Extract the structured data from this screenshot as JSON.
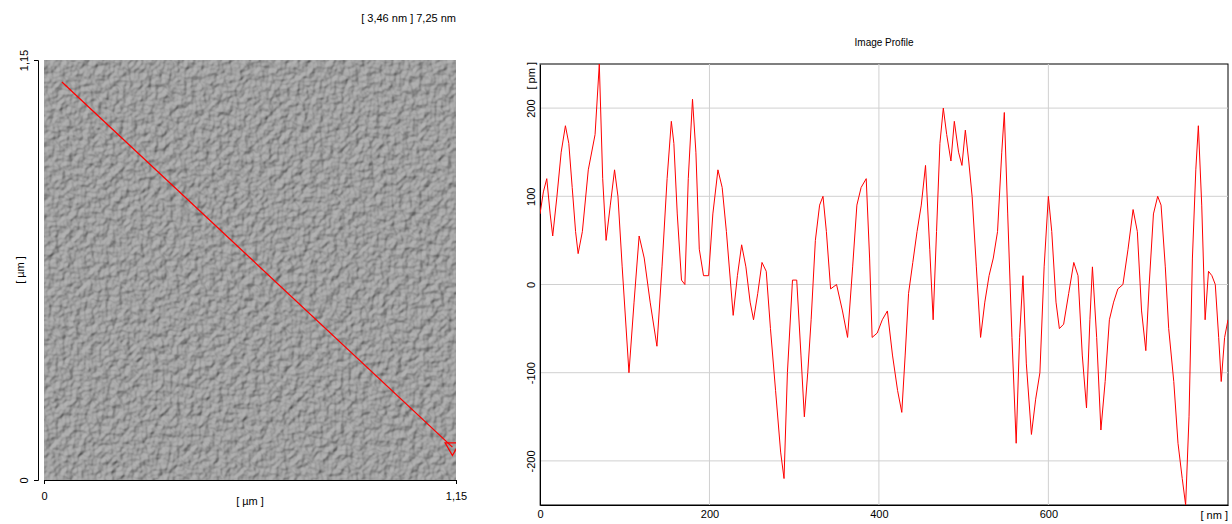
{
  "chart_data": [
    {
      "type": "image",
      "title": "[ 3,46 nm ] 7,25 nm",
      "x_label": "[ µm ]",
      "y_label": "[ µm ]",
      "xlim": [
        0,
        1.15
      ],
      "ylim": [
        0,
        1.15
      ],
      "xticks": [
        0,
        {
          "value": 1.15,
          "label": "1,15"
        }
      ],
      "yticks": [
        0,
        {
          "value": 1.15,
          "label": "1,15"
        }
      ],
      "series": [
        {
          "type": "line",
          "color": "#ff0000",
          "marker": "triangle",
          "x": [
            0.05,
            1.14
          ],
          "values": [
            1.09,
            0.09
          ]
        }
      ]
    },
    {
      "type": "line",
      "title": "Image Profile",
      "x_label": "[ nm ]",
      "y_label": "[ pm ]",
      "xlim": [
        0,
        812
      ],
      "ylim": [
        -250,
        250
      ],
      "xticks": [
        0,
        200,
        400,
        600
      ],
      "yticks": [
        -200,
        -100,
        0,
        100,
        200
      ],
      "grid": true,
      "color": "#ff0000",
      "x": [
        0,
        4,
        8,
        12,
        15,
        20,
        25,
        30,
        34,
        38,
        42,
        45,
        50,
        57,
        65,
        70,
        74,
        78,
        83,
        88,
        92,
        97,
        105,
        111,
        117,
        123,
        130,
        138,
        144,
        150,
        155,
        158,
        162,
        167,
        171,
        175,
        180,
        184,
        188,
        193,
        199,
        204,
        210,
        215,
        220,
        228,
        233,
        238,
        243,
        248,
        252,
        257,
        262,
        267,
        272,
        278,
        284,
        288,
        292,
        298,
        303,
        308,
        312,
        316,
        320,
        325,
        330,
        334,
        338,
        343,
        350,
        357,
        363,
        369,
        374,
        379,
        385,
        389,
        392,
        398,
        404,
        410,
        416,
        422,
        427,
        431,
        435,
        440,
        445,
        450,
        455,
        460,
        464,
        468,
        472,
        476,
        480,
        485,
        489,
        494,
        498,
        502,
        506,
        510,
        515,
        520,
        525,
        530,
        535,
        540,
        545,
        548,
        552,
        557,
        562,
        566,
        570,
        574,
        580,
        585,
        590,
        595,
        600,
        604,
        609,
        613,
        618,
        624,
        630,
        635,
        640,
        645,
        649,
        652,
        657,
        662,
        667,
        672,
        677,
        682,
        688,
        694,
        700,
        705,
        710,
        715,
        719,
        724,
        729,
        733,
        738,
        742,
        748,
        753,
        758,
        762,
        766,
        770,
        774,
        777,
        781,
        785,
        789,
        793,
        797,
        801,
        804,
        808,
        812
      ],
      "values": [
        80,
        105,
        120,
        80,
        55,
        100,
        150,
        180,
        160,
        110,
        60,
        35,
        60,
        130,
        170,
        250,
        120,
        50,
        90,
        130,
        100,
        20,
        -100,
        -20,
        55,
        30,
        -20,
        -70,
        20,
        120,
        185,
        160,
        80,
        5,
        0,
        120,
        210,
        150,
        40,
        10,
        10,
        80,
        130,
        110,
        60,
        -35,
        10,
        45,
        20,
        -20,
        -40,
        -10,
        25,
        15,
        -50,
        -120,
        -190,
        -220,
        -100,
        5,
        5,
        -80,
        -150,
        -100,
        -40,
        50,
        90,
        100,
        60,
        -5,
        0,
        -30,
        -60,
        20,
        90,
        110,
        120,
        30,
        -60,
        -55,
        -40,
        -30,
        -80,
        -120,
        -145,
        -80,
        -10,
        25,
        60,
        90,
        135,
        40,
        -40,
        60,
        160,
        200,
        170,
        140,
        185,
        150,
        135,
        175,
        140,
        100,
        20,
        -60,
        -20,
        10,
        30,
        60,
        150,
        195,
        80,
        -60,
        -180,
        -60,
        10,
        -90,
        -170,
        -130,
        -100,
        20,
        100,
        60,
        -20,
        -50,
        -45,
        -10,
        25,
        10,
        -80,
        -140,
        -40,
        20,
        -60,
        -165,
        -110,
        -40,
        -20,
        -5,
        0,
        40,
        85,
        60,
        -30,
        -75,
        0,
        80,
        100,
        90,
        20,
        -50,
        -110,
        -180,
        -220,
        -250,
        -150,
        30,
        130,
        180,
        90,
        -40,
        15,
        10,
        0,
        -60,
        -110,
        -60,
        -40
      ]
    }
  ]
}
